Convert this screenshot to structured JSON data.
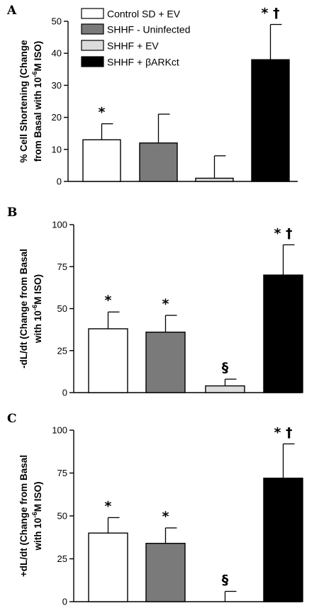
{
  "legend": {
    "entries": [
      {
        "label": "Control SD + EV",
        "color": "#ffffff"
      },
      {
        "label": "SHHF - Uninfected",
        "color": "#7a7a7a"
      },
      {
        "label": "SHHF + EV",
        "color": "#dcdcdc"
      },
      {
        "label": "SHHF + βARKct",
        "color": "#000000"
      }
    ]
  },
  "chart_data": [
    {
      "type": "bar",
      "panel": "A",
      "ylabel_line1": "% Cell Shortening (Change",
      "ylabel_line2": "from Basal with 10",
      "ylabel_sup": "-6",
      "ylabel_end": "M ISO)",
      "ylim": [
        0,
        50
      ],
      "yticks": [
        0,
        10,
        20,
        30,
        40,
        50
      ],
      "categories": [
        "Control SD + EV",
        "SHHF - Uninfected",
        "SHHF + EV",
        "SHHF + βARKct"
      ],
      "values": [
        13,
        12,
        1,
        38
      ],
      "errors": [
        5,
        9,
        7,
        11
      ],
      "annotations": [
        "*",
        "",
        "",
        "* †"
      ],
      "colors": [
        "#ffffff",
        "#7a7a7a",
        "#dcdcdc",
        "#000000"
      ]
    },
    {
      "type": "bar",
      "panel": "B",
      "ylabel_line1": "-dL/dt (Change from Basal",
      "ylabel_line2": "with 10",
      "ylabel_sup": "-6",
      "ylabel_end": "M ISO)",
      "ylim": [
        0,
        100
      ],
      "yticks": [
        0,
        25,
        50,
        75,
        100
      ],
      "categories": [
        "Control SD + EV",
        "SHHF - Uninfected",
        "SHHF + EV",
        "SHHF + βARKct"
      ],
      "values": [
        38,
        36,
        4,
        70
      ],
      "errors": [
        10,
        10,
        4,
        18
      ],
      "annotations": [
        "*",
        "*",
        "§",
        "* †"
      ],
      "colors": [
        "#ffffff",
        "#7a7a7a",
        "#dcdcdc",
        "#000000"
      ]
    },
    {
      "type": "bar",
      "panel": "C",
      "ylabel_line1": "+dL/dt (Change from Basal",
      "ylabel_line2": "with 10",
      "ylabel_sup": "-6",
      "ylabel_end": "M ISO)",
      "ylim": [
        0,
        100
      ],
      "yticks": [
        0,
        25,
        50,
        75,
        100
      ],
      "categories": [
        "Control SD + EV",
        "SHHF - Uninfected",
        "SHHF + EV",
        "SHHF + βARKct"
      ],
      "values": [
        40,
        34,
        0,
        72
      ],
      "errors": [
        9,
        9,
        6,
        20
      ],
      "annotations": [
        "*",
        "*",
        "§",
        "* †"
      ],
      "colors": [
        "#ffffff",
        "#7a7a7a",
        "#dcdcdc",
        "#000000"
      ]
    }
  ]
}
